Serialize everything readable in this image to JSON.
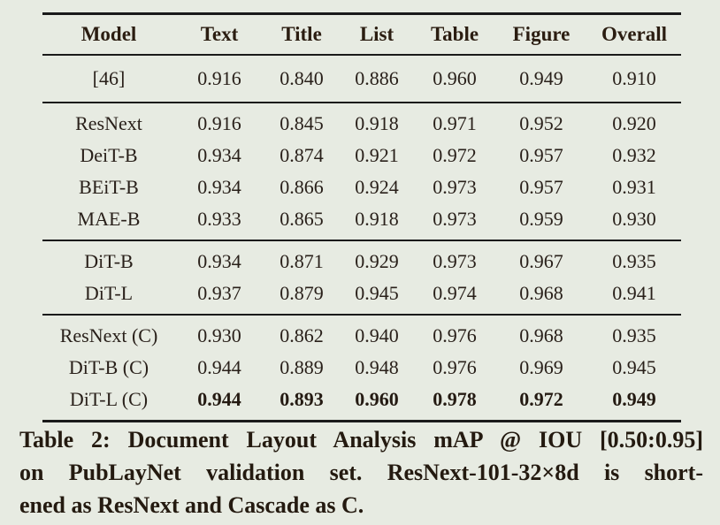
{
  "table": {
    "columns": [
      "Model",
      "Text",
      "Title",
      "List",
      "Table",
      "Figure",
      "Overall"
    ],
    "groups": [
      {
        "rows": [
          {
            "model": "[46]",
            "values": [
              "0.916",
              "0.840",
              "0.886",
              "0.960",
              "0.949",
              "0.910"
            ],
            "bold_values": false
          }
        ]
      },
      {
        "rows": [
          {
            "model": "ResNext",
            "values": [
              "0.916",
              "0.845",
              "0.918",
              "0.971",
              "0.952",
              "0.920"
            ],
            "bold_values": false
          },
          {
            "model": "DeiT-B",
            "values": [
              "0.934",
              "0.874",
              "0.921",
              "0.972",
              "0.957",
              "0.932"
            ],
            "bold_values": false
          },
          {
            "model": "BEiT-B",
            "values": [
              "0.934",
              "0.866",
              "0.924",
              "0.973",
              "0.957",
              "0.931"
            ],
            "bold_values": false
          },
          {
            "model": "MAE-B",
            "values": [
              "0.933",
              "0.865",
              "0.918",
              "0.973",
              "0.959",
              "0.930"
            ],
            "bold_values": false
          }
        ]
      },
      {
        "rows": [
          {
            "model": "DiT-B",
            "values": [
              "0.934",
              "0.871",
              "0.929",
              "0.973",
              "0.967",
              "0.935"
            ],
            "bold_values": false
          },
          {
            "model": "DiT-L",
            "values": [
              "0.937",
              "0.879",
              "0.945",
              "0.974",
              "0.968",
              "0.941"
            ],
            "bold_values": false
          }
        ]
      },
      {
        "rows": [
          {
            "model": "ResNext (C)",
            "values": [
              "0.930",
              "0.862",
              "0.940",
              "0.976",
              "0.968",
              "0.935"
            ],
            "bold_values": false
          },
          {
            "model": "DiT-B (C)",
            "values": [
              "0.944",
              "0.889",
              "0.948",
              "0.976",
              "0.969",
              "0.945"
            ],
            "bold_values": false
          },
          {
            "model": "DiT-L (C)",
            "values": [
              "0.944",
              "0.893",
              "0.960",
              "0.978",
              "0.972",
              "0.949"
            ],
            "bold_values": true
          }
        ]
      }
    ]
  },
  "caption": {
    "lines": [
      "Table 2: Document Layout Analysis mAP @ IOU [0.50:0.95]",
      "on PubLayNet validation set. ResNext-101-32×8d is short-",
      "ened as ResNext and Cascade as C."
    ]
  },
  "colors": {
    "background": "#e7ebe2",
    "ink": "#29201a",
    "rule": "#1a1a1a"
  }
}
